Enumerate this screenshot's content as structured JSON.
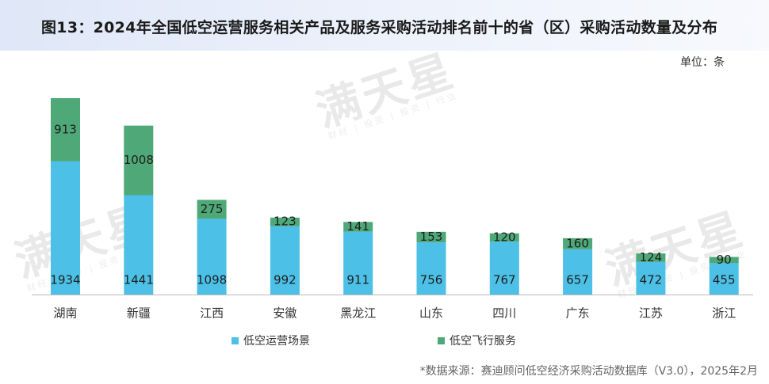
{
  "title": "图13：2024年全国低空运营服务相关产品及服务采购活动排名前十的省（区）采购活动数量及分布",
  "unit_label": "单位：条",
  "source": "*数据来源：赛迪顾问低空经济采购活动数据库（V3.0），2025年2月",
  "watermark": {
    "text": "满天星",
    "sub": "财经 | 投资 | 投资 | 行业"
  },
  "colors": {
    "scene": "#4cc0e6",
    "flight": "#4ea877",
    "label": "#1e1e1e"
  },
  "chart_data": {
    "type": "bar",
    "stacked": true,
    "title": "图13：2024年全国低空运营服务相关产品及服务采购活动排名前十的省（区）采购活动数量及分布",
    "categories": [
      "湖南",
      "新疆",
      "江西",
      "安徽",
      "黑龙江",
      "山东",
      "四川",
      "广东",
      "江苏",
      "浙江"
    ],
    "series": [
      {
        "name": "低空运营场景",
        "values": [
          1934,
          1441,
          1098,
          992,
          911,
          756,
          767,
          657,
          472,
          455
        ]
      },
      {
        "name": "低空飞行服务",
        "values": [
          913,
          1008,
          275,
          123,
          141,
          153,
          120,
          160,
          124,
          90
        ]
      }
    ],
    "ylim": [
      0,
      3000
    ],
    "grid": false,
    "legend": "bottom-center",
    "xlabel": "",
    "ylabel": ""
  }
}
